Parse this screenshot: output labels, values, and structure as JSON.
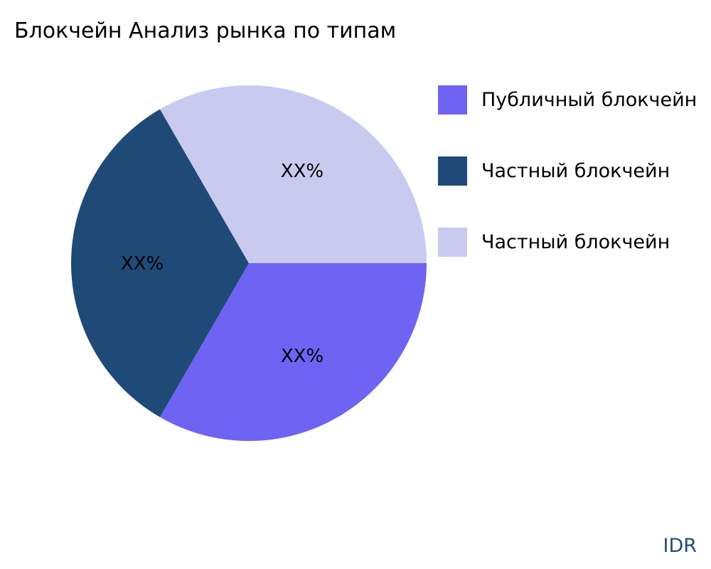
{
  "chart_data": {
    "type": "pie",
    "title": "Блокчейн Анализ рынка по типам",
    "categories": [
      "Публичный блокчейн",
      "Частный блокчейн",
      "Частный блокчейн"
    ],
    "values": [
      33.33,
      33.33,
      33.34
    ],
    "data_labels": [
      "XX%",
      "XX%",
      "XX%"
    ],
    "colors": [
      "#6f63f4",
      "#1f4a78",
      "#c9caf0"
    ],
    "legend_position": "right"
  },
  "brand": "IDR"
}
